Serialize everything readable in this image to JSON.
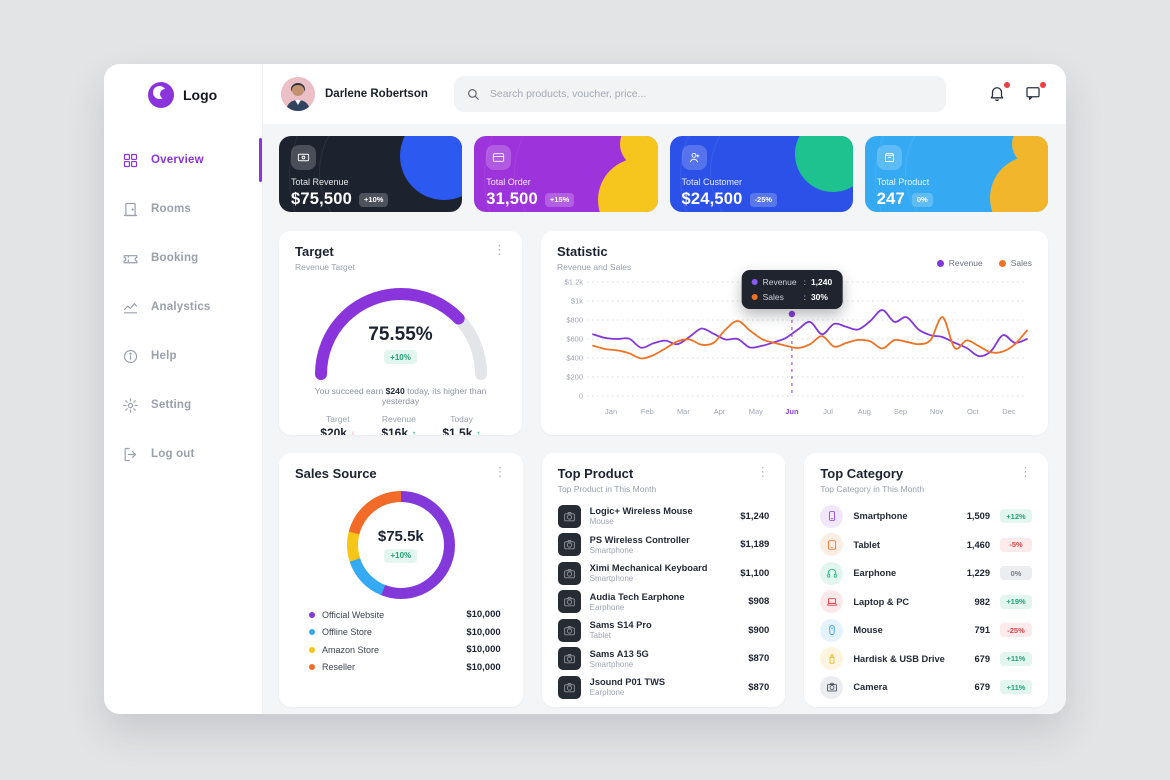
{
  "window": {
    "logo_text": "Logo"
  },
  "icons": {
    "kebab": "⋮"
  },
  "sidebar": {
    "items": [
      {
        "id": "overview",
        "label": "Overview",
        "icon": "grid-icon",
        "active": true
      },
      {
        "id": "rooms",
        "label": "Rooms",
        "icon": "door-icon",
        "active": false
      },
      {
        "id": "booking",
        "label": "Booking",
        "icon": "ticket-icon",
        "active": false
      },
      {
        "id": "analytics",
        "label": "Analystics",
        "icon": "chart-icon",
        "active": false
      },
      {
        "id": "help",
        "label": "Help",
        "icon": "info-icon",
        "active": false
      },
      {
        "id": "setting",
        "label": "Setting",
        "icon": "gear-icon",
        "active": false
      },
      {
        "id": "logout",
        "label": "Log out",
        "icon": "logout-icon",
        "active": false
      }
    ]
  },
  "topbar": {
    "user_name": "Darlene Robertson",
    "search_placeholder": "Search products, voucher, price...",
    "notification_icons": [
      "bell-icon",
      "message-icon"
    ]
  },
  "stat_cards": [
    {
      "label": "Total Revenue",
      "value": "$75,500",
      "change": "+10%",
      "icon": "banknote-icon",
      "bg": "#1d222f",
      "accent": "#2c59f0"
    },
    {
      "label": "Total Order",
      "value": "31,500",
      "change": "+15%",
      "icon": "credit-card-icon",
      "bg": "#9d33da",
      "accent": "#f6c51e"
    },
    {
      "label": "Total Customer",
      "value": "$24,500",
      "change": "-25%",
      "icon": "user-icon",
      "bg": "#2b51e8",
      "accent": "#1ec28f"
    },
    {
      "label": "Total Product",
      "value": "247",
      "change": "0%",
      "icon": "box-icon",
      "bg": "#35aaf3",
      "accent": "#f2b62c"
    }
  ],
  "target": {
    "title": "Target",
    "subtitle": "Revenue Target",
    "gauge_label": "75.55%",
    "gauge_badge": "+10%",
    "note_prefix": "You succeed earn ",
    "note_bold": "$240",
    "note_suffix": " today, its higher than yesterday",
    "metrics": [
      {
        "label": "Target",
        "value": "$20k",
        "dir": "down"
      },
      {
        "label": "Revenue",
        "value": "$16k",
        "dir": "up"
      },
      {
        "label": "Today",
        "value": "$1.5k",
        "dir": "up"
      }
    ]
  },
  "statistic": {
    "title": "Statistic",
    "subtitle": "Revenue and Sales",
    "tooltip": {
      "rows": [
        {
          "label": "Revenue",
          "value": "1,240",
          "color": "#8a5cf6"
        },
        {
          "label": "Sales",
          "value": "30%",
          "color": "#f07224"
        }
      ]
    }
  },
  "sales_source": {
    "title": "Sales Source",
    "center_value": "$75.5k",
    "center_badge": "+10%"
  },
  "top_product": {
    "title": "Top Product",
    "subtitle": "Top Product in This Month",
    "items": [
      {
        "name": "Logic+ Wireless Mouse",
        "category": "Mouse",
        "price": "$1,240"
      },
      {
        "name": "PS Wireless Controller",
        "category": "Smartphone",
        "price": "$1,189"
      },
      {
        "name": "Ximi Mechanical Keyboard",
        "category": "Smartphone",
        "price": "$1,100"
      },
      {
        "name": "Audia Tech Earphone",
        "category": "Earphone",
        "price": "$908"
      },
      {
        "name": "Sams S14 Pro",
        "category": "Tablet",
        "price": "$900"
      },
      {
        "name": "Sams A13 5G",
        "category": "Smartphone",
        "price": "$870"
      },
      {
        "name": "Jsound P01 TWS",
        "category": "Earphone",
        "price": "$870"
      }
    ]
  },
  "top_category": {
    "title": "Top Category",
    "subtitle": "Top Category in This Month",
    "items": [
      {
        "name": "Smartphone",
        "icon": "smartphone-icon",
        "icon_color": "#8a3fe0",
        "icon_bg": "#f1e7fb",
        "count": "1,509",
        "change": "+12%"
      },
      {
        "name": "Tablet",
        "icon": "tablet-icon",
        "icon_color": "#f26b22",
        "icon_bg": "#fdeee4",
        "count": "1,460",
        "change": "-5%"
      },
      {
        "name": "Earphone",
        "icon": "headphones-icon",
        "icon_color": "#1db583",
        "icon_bg": "#e2f6ef",
        "count": "1,229",
        "change": "0%"
      },
      {
        "name": "Laptop & PC",
        "icon": "laptop-icon",
        "icon_color": "#e8323c",
        "icon_bg": "#fde9ea",
        "count": "982",
        "change": "+19%"
      },
      {
        "name": "Mouse",
        "icon": "mouse-icon",
        "icon_color": "#2f9df4",
        "icon_bg": "#e4f3fe",
        "count": "791",
        "change": "-25%"
      },
      {
        "name": "Hardisk & USB Drive",
        "icon": "usb-drive-icon",
        "icon_color": "#f2b718",
        "icon_bg": "#fdf5df",
        "count": "679",
        "change": "+11%"
      },
      {
        "name": "Camera",
        "icon": "camera-icon",
        "icon_color": "#3a3f4a",
        "icon_bg": "#ebedf0",
        "count": "679",
        "change": "+11%"
      }
    ]
  },
  "chart_data": [
    {
      "type": "line",
      "title": "Revenue and Sales",
      "x_labels": [
        "Jan",
        "Feb",
        "Mar",
        "Apr",
        "May",
        "Jun",
        "Jul",
        "Aug",
        "Sep",
        "Nov",
        "Oct",
        "Dec"
      ],
      "highlight_x": "Jun",
      "ylim": [
        0,
        1200
      ],
      "y_tick_labels": [
        "$1.2k",
        "$1k",
        "$800",
        "$600",
        "$400",
        "$200",
        "0"
      ],
      "grid": true,
      "legend_position": "top-right",
      "series": [
        {
          "name": "Revenue",
          "color": "#8338d9",
          "values": [
            650,
            612,
            600,
            603,
            508,
            555,
            583,
            545,
            622,
            710,
            655,
            595,
            600,
            512,
            528,
            565,
            612,
            700,
            780,
            650,
            760,
            728,
            700,
            790,
            905,
            780,
            830,
            700,
            640,
            620,
            560,
            505,
            420,
            470,
            640,
            560,
            600
          ]
        },
        {
          "name": "Sales",
          "color": "#f07224",
          "values": [
            530,
            495,
            480,
            450,
            395,
            430,
            500,
            575,
            595,
            540,
            560,
            700,
            790,
            690,
            600,
            560,
            530,
            505,
            545,
            630,
            520,
            558,
            590,
            575,
            500,
            588,
            570,
            545,
            590,
            830,
            505,
            585,
            525,
            460,
            468,
            545,
            690
          ]
        }
      ]
    },
    {
      "type": "gauge",
      "title": "Revenue Target",
      "value_percent": 75.55,
      "label": "75.55%",
      "badge": "+10%",
      "color": "#8a35db",
      "track_color": "#e3e5e9"
    },
    {
      "type": "donut",
      "title": "Sales Source",
      "center": "$75.5k",
      "badge": "+10%",
      "segments": [
        {
          "label": "Official Website",
          "value": "$10,000",
          "color": "#8338d9",
          "pct": 56
        },
        {
          "label": "Offline Store",
          "value": "$10,000",
          "color": "#35aaf3",
          "pct": 14
        },
        {
          "label": "Amazon Store",
          "value": "$10,000",
          "color": "#f5c518",
          "pct": 9
        },
        {
          "label": "Reseller",
          "value": "$10,000",
          "color": "#f26b29",
          "pct": 21
        }
      ]
    }
  ],
  "colors": {
    "accent_purple": "#8338d9",
    "accent_orange": "#f07224",
    "positive_green": "#27a27a",
    "negative_red": "#e0474c",
    "page_bg": "#e3e4e6",
    "content_bg": "#f4f5f7",
    "tooltip_bg": "#20242f"
  }
}
